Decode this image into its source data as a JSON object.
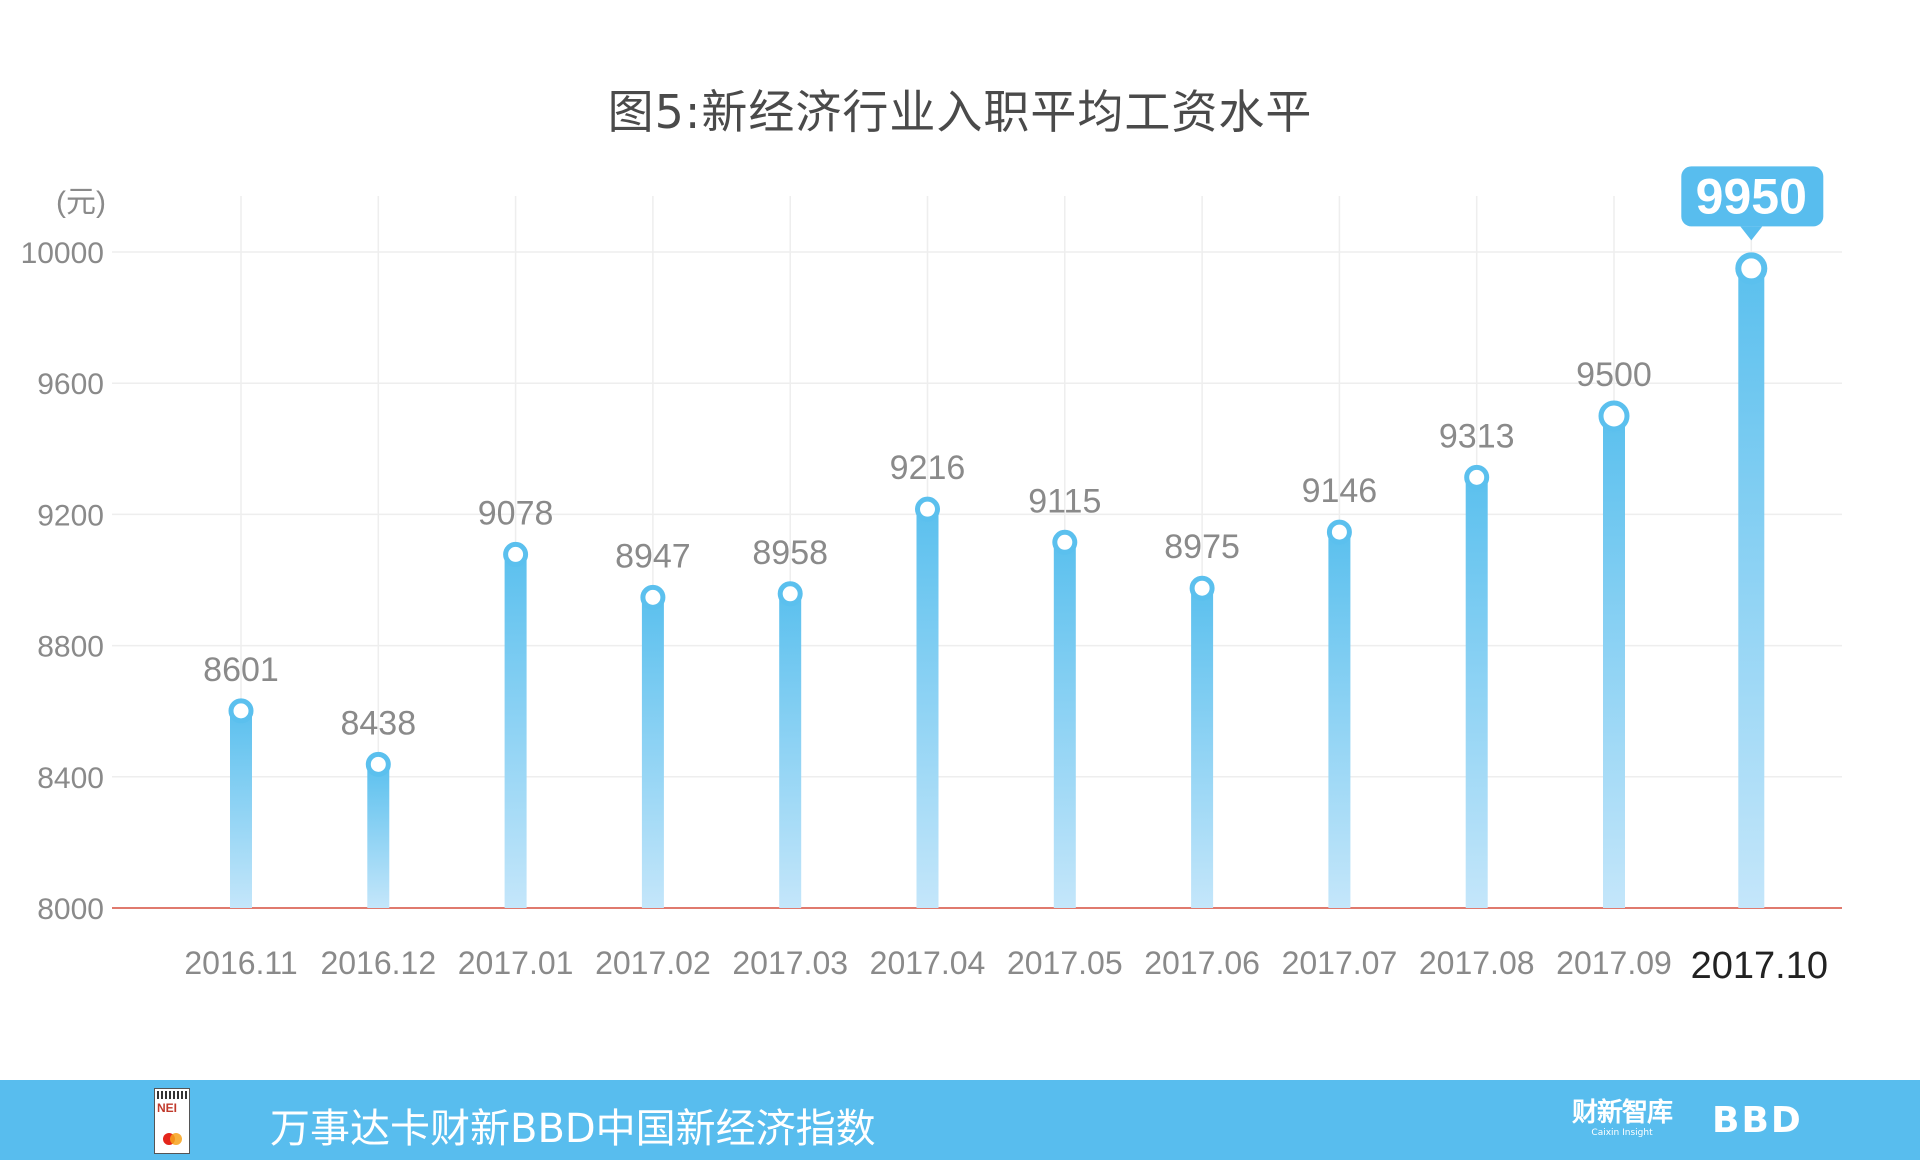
{
  "chart_data": {
    "type": "bar",
    "title": "图5:新经济行业入职平均工资水平",
    "unit_label": "(元)",
    "categories": [
      "2016.11",
      "2016.12",
      "2017.01",
      "2017.02",
      "2017.03",
      "2017.04",
      "2017.05",
      "2017.06",
      "2017.07",
      "2017.08",
      "2017.09",
      "2017.10"
    ],
    "values": [
      8601,
      8438,
      9078,
      8947,
      8958,
      9216,
      9115,
      8975,
      9146,
      9313,
      9500,
      9950
    ],
    "ylim": [
      8000,
      10000
    ],
    "yticks": [
      8000,
      8400,
      8800,
      9200,
      9600,
      10000
    ],
    "highlight_label": "9950",
    "grid": true,
    "colors": {
      "bar_top": "#5bc0ee",
      "bar_bottom": "#c4e6fa",
      "baseline": "#e07a6e",
      "grid": "#eeeeee",
      "callout": "#58bdee"
    }
  },
  "footer": {
    "logo_text": "NEI",
    "title": "万事达卡财新BBD中国新经济指数",
    "brand_cn": "财新智库",
    "brand_en": "Caixin Insight",
    "brand_bbd": "BBD"
  }
}
